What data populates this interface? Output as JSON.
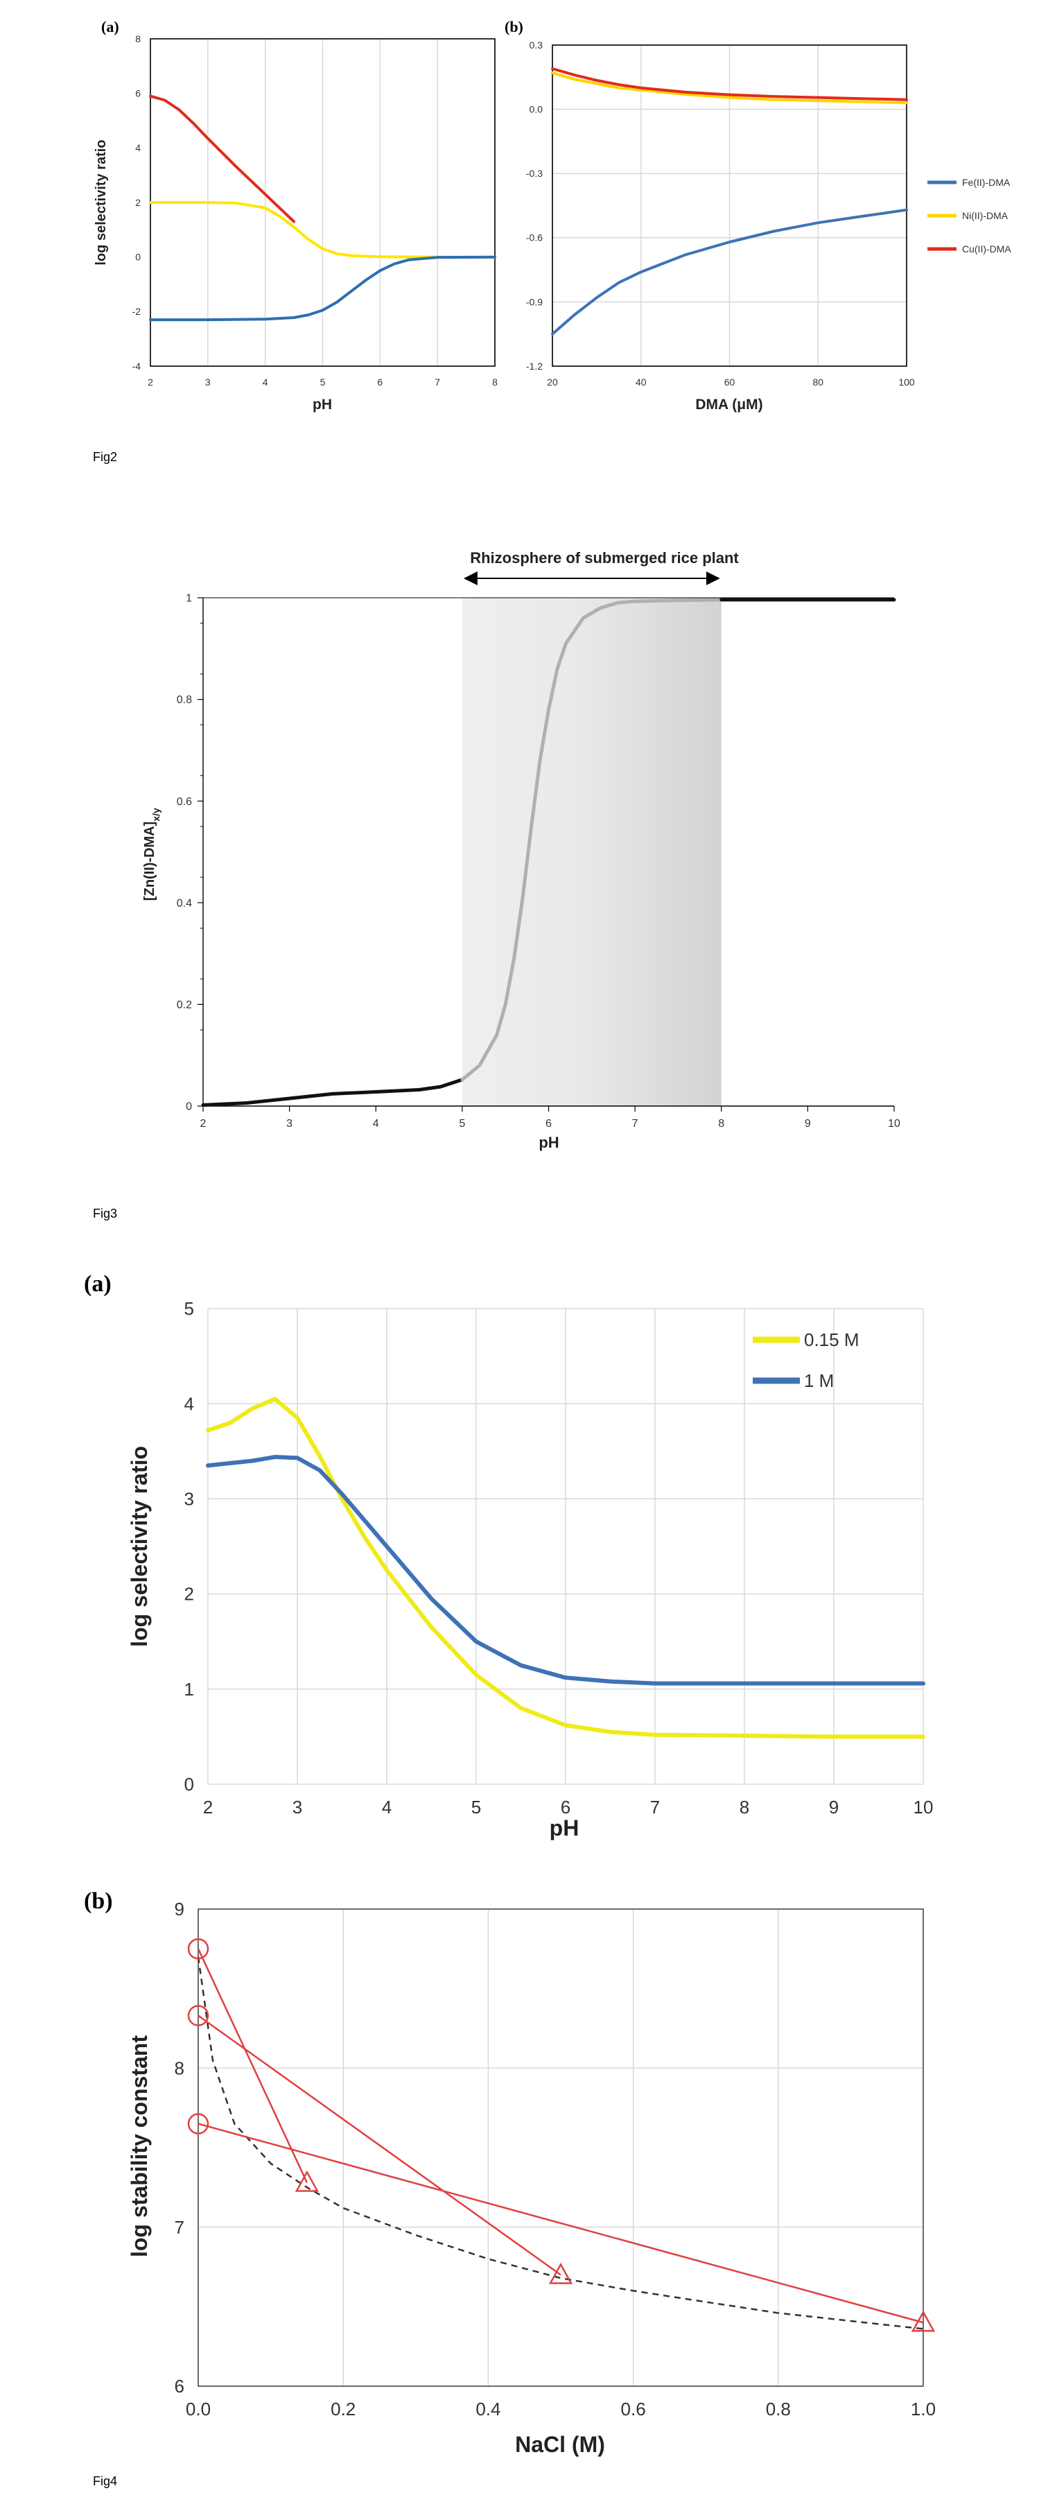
{
  "chart_data": [
    {
      "id": "fig2a",
      "panel_label": "(a)",
      "type": "line",
      "xlabel": "pH",
      "ylabel": "log selectivity ratio",
      "xlim": [
        2,
        8
      ],
      "ylim": [
        -4,
        8
      ],
      "xticks": [
        "2",
        "3",
        "4",
        "5",
        "6",
        "7",
        "8"
      ],
      "yticks": [
        "-4",
        "-2",
        "0",
        "2",
        "4",
        "6",
        "8"
      ],
      "grid": "vertical",
      "series": [
        {
          "color": "#ffe600",
          "x": [
            2,
            2.5,
            3,
            3.5,
            4,
            4.25,
            4.5,
            4.75,
            5,
            5.25,
            5.5,
            6,
            7,
            8
          ],
          "y": [
            2,
            2,
            2,
            1.98,
            1.8,
            1.5,
            1.1,
            0.65,
            0.3,
            0.12,
            0.05,
            0.01,
            0,
            0
          ]
        },
        {
          "color": "#e32a1b",
          "x": [
            2,
            2.25,
            2.5,
            2.75,
            3,
            3.5,
            4,
            4.25,
            4.5
          ],
          "y": [
            5.9,
            5.75,
            5.4,
            4.9,
            4.35,
            3.3,
            2.3,
            1.8,
            1.3
          ]
        },
        {
          "color": "#2d6fb0",
          "x": [
            2,
            3,
            4,
            4.5,
            4.75,
            5,
            5.25,
            5.5,
            5.75,
            6,
            6.25,
            6.5,
            7,
            8
          ],
          "y": [
            -2.3,
            -2.3,
            -2.28,
            -2.22,
            -2.12,
            -1.95,
            -1.65,
            -1.25,
            -0.85,
            -0.5,
            -0.25,
            -0.1,
            -0.01,
            0
          ]
        }
      ]
    },
    {
      "id": "fig2b",
      "panel_label": "(b)",
      "type": "line",
      "xlabel": "DMA (μM)",
      "ylabel": "",
      "xlim": [
        20,
        100
      ],
      "ylim": [
        -1.2,
        0.3
      ],
      "xticks": [
        "20",
        "40",
        "60",
        "80",
        "100"
      ],
      "yticks": [
        "-1.2",
        "-0.9",
        "-0.6",
        "-0.3",
        "0.0",
        "0.3"
      ],
      "grid": "both",
      "legend": "right",
      "series": [
        {
          "name": "Fe(II)-DMA",
          "color": "#3f72b5",
          "x": [
            20,
            25,
            30,
            35,
            40,
            50,
            60,
            70,
            80,
            90,
            100
          ],
          "y": [
            -1.05,
            -0.96,
            -0.88,
            -0.81,
            -0.76,
            -0.68,
            -0.62,
            -0.57,
            -0.53,
            -0.5,
            -0.47
          ]
        },
        {
          "name": "Ni(II)-DMA",
          "color": "#ffd400",
          "x": [
            20,
            25,
            30,
            35,
            40,
            50,
            60,
            70,
            80,
            90,
            100
          ],
          "y": [
            0.17,
            0.14,
            0.12,
            0.1,
            0.09,
            0.07,
            0.055,
            0.045,
            0.04,
            0.035,
            0.03
          ]
        },
        {
          "name": "Cu(II)-DMA",
          "color": "#e32a1b",
          "x": [
            20,
            25,
            30,
            35,
            40,
            50,
            60,
            70,
            80,
            90,
            100
          ],
          "y": [
            0.19,
            0.16,
            0.135,
            0.115,
            0.1,
            0.08,
            0.068,
            0.06,
            0.055,
            0.05,
            0.045
          ]
        }
      ]
    },
    {
      "id": "fig3",
      "type": "line",
      "xlabel": "pH",
      "ylabel": "[Zn(II)-DMA]",
      "ylabel_sub": "x/y",
      "xlim": [
        2,
        10
      ],
      "ylim": [
        0,
        1
      ],
      "xticks": [
        "2",
        "3",
        "4",
        "5",
        "6",
        "7",
        "8",
        "9",
        "10"
      ],
      "yticks": [
        "0",
        "0.2",
        "0.4",
        "0.6",
        "0.8",
        "1"
      ],
      "annotation": "Rhizosphere of submerged rice plant",
      "shaded_range": [
        5,
        8
      ],
      "series": [
        {
          "color": "#111111",
          "x": [
            2,
            2.5,
            3,
            3.5,
            4,
            4.5,
            4.75,
            5
          ],
          "y": [
            0.002,
            0.006,
            0.015,
            0.024,
            0.028,
            0.032,
            0.038,
            0.052
          ]
        },
        {
          "color": "#b0b0b0",
          "x": [
            5,
            5.2,
            5.4,
            5.5,
            5.6,
            5.7,
            5.8,
            5.9,
            6,
            6.1,
            6.2,
            6.4,
            6.6,
            6.8,
            7,
            7.5,
            8
          ],
          "y": [
            0.052,
            0.08,
            0.14,
            0.2,
            0.29,
            0.41,
            0.55,
            0.68,
            0.78,
            0.86,
            0.91,
            0.96,
            0.98,
            0.99,
            0.993,
            0.995,
            0.996
          ]
        },
        {
          "color": "#111111",
          "x": [
            8,
            9,
            10
          ],
          "y": [
            0.996,
            0.996,
            0.996
          ]
        }
      ]
    },
    {
      "id": "fig4a",
      "panel_label": "(a)",
      "type": "line",
      "xlabel": "pH",
      "ylabel": "log selectivity ratio",
      "xlim": [
        2,
        10
      ],
      "ylim": [
        0,
        5
      ],
      "xticks": [
        "2",
        "3",
        "4",
        "5",
        "6",
        "7",
        "8",
        "9",
        "10"
      ],
      "yticks": [
        "0",
        "1",
        "2",
        "3",
        "4",
        "5"
      ],
      "grid": "both",
      "legend": "top-right",
      "series": [
        {
          "name": "0.15 M",
          "color": "#f0ea1a",
          "x": [
            2,
            2.25,
            2.5,
            2.75,
            3,
            3.25,
            3.5,
            3.75,
            4,
            4.5,
            5,
            5.5,
            6,
            6.5,
            7,
            8,
            9,
            10
          ],
          "y": [
            3.72,
            3.8,
            3.95,
            4.05,
            3.85,
            3.45,
            3.0,
            2.6,
            2.25,
            1.65,
            1.15,
            0.8,
            0.62,
            0.55,
            0.52,
            0.51,
            0.5,
            0.5
          ]
        },
        {
          "name": "1 M",
          "color": "#3f72b5",
          "x": [
            2,
            2.5,
            2.75,
            3,
            3.25,
            3.5,
            4,
            4.5,
            5,
            5.5,
            6,
            6.5,
            7,
            8,
            9,
            10
          ],
          "y": [
            3.35,
            3.4,
            3.44,
            3.43,
            3.3,
            3.05,
            2.5,
            1.95,
            1.5,
            1.25,
            1.12,
            1.08,
            1.06,
            1.06,
            1.06,
            1.06
          ]
        }
      ]
    },
    {
      "id": "fig4b",
      "panel_label": "(b)",
      "type": "scatter",
      "xlabel": "NaCl (M)",
      "ylabel": "log stability constant",
      "xlim": [
        0,
        1
      ],
      "ylim": [
        6,
        9
      ],
      "xticks": [
        "0.0",
        "0.2",
        "0.4",
        "0.6",
        "0.8",
        "1.0"
      ],
      "yticks": [
        "6",
        "7",
        "8",
        "9"
      ],
      "grid": "both",
      "segments": [
        {
          "x": [
            0,
            0.15
          ],
          "y": [
            8.75,
            7.28
          ]
        },
        {
          "x": [
            0,
            0.5
          ],
          "y": [
            8.33,
            6.7
          ]
        },
        {
          "x": [
            0,
            1.0
          ],
          "y": [
            7.65,
            6.4
          ]
        }
      ],
      "dashed_curve": {
        "x": [
          0,
          0.02,
          0.05,
          0.1,
          0.15,
          0.2,
          0.3,
          0.4,
          0.5,
          0.6,
          0.7,
          0.8,
          0.9,
          1.0
        ],
        "y": [
          8.7,
          8.05,
          7.65,
          7.4,
          7.25,
          7.12,
          6.95,
          6.8,
          6.68,
          6.6,
          6.53,
          6.46,
          6.41,
          6.36
        ]
      },
      "marker_color": "#e04040"
    }
  ],
  "figure_labels": {
    "fig2": "Fig2",
    "fig3": "Fig3",
    "fig4": "Fig4"
  }
}
